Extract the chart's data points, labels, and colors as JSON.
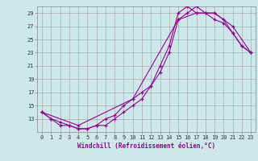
{
  "xlabel": "Windchill (Refroidissement éolien,°C)",
  "bg_color": "#cce8e8",
  "grid_color": "#aaaaaa",
  "line_color": "#990099",
  "xlim": [
    -0.5,
    23.5
  ],
  "ylim": [
    11,
    30
  ],
  "yticks": [
    13,
    15,
    17,
    19,
    21,
    23,
    25,
    27,
    29
  ],
  "xticks": [
    0,
    1,
    2,
    3,
    4,
    5,
    6,
    7,
    8,
    9,
    10,
    11,
    12,
    13,
    14,
    15,
    16,
    17,
    18,
    19,
    20,
    21,
    22,
    23
  ],
  "line1_x": [
    0,
    1,
    2,
    3,
    4,
    5,
    6,
    7,
    8,
    9,
    10,
    11,
    12,
    13,
    14,
    15,
    16,
    17,
    18,
    19,
    20,
    21,
    22,
    23
  ],
  "line1_y": [
    14,
    13,
    12,
    12,
    11.5,
    11.5,
    12,
    13,
    13.5,
    15,
    16,
    17,
    18,
    21,
    24,
    29,
    30,
    29,
    29,
    28,
    27.5,
    26,
    24,
    23
  ],
  "line2_x": [
    0,
    1,
    2,
    3,
    4,
    5,
    6,
    7,
    8,
    9,
    10,
    11,
    12,
    13,
    14,
    15,
    16,
    17,
    18,
    19,
    20,
    21,
    22,
    23
  ],
  "line2_y": [
    14,
    13,
    12.5,
    12,
    11.5,
    11.5,
    12,
    12,
    13,
    14,
    15,
    16,
    18,
    20,
    23,
    28,
    29,
    30,
    29,
    29,
    28,
    26,
    24,
    23
  ],
  "line3_x": [
    0,
    4,
    10,
    15,
    17,
    19,
    21,
    23
  ],
  "line3_y": [
    14,
    12,
    16,
    28,
    29,
    29,
    27,
    23
  ],
  "font_size": 5.5,
  "tick_font_size": 5.0
}
